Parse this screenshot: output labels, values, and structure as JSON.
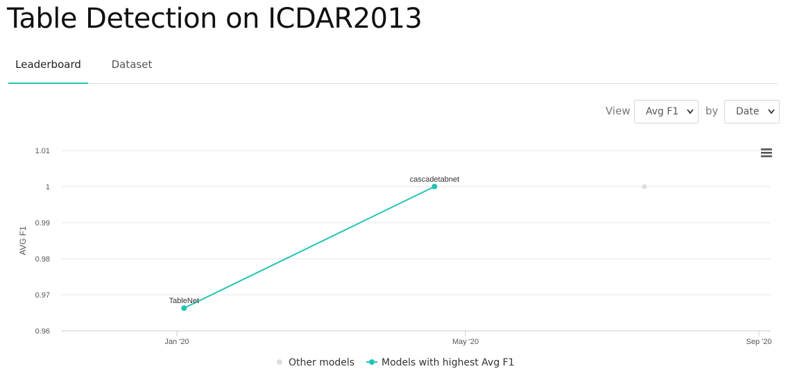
{
  "page": {
    "title": "Table Detection on ICDAR2013"
  },
  "tabs": [
    {
      "label": "Leaderboard",
      "active": true
    },
    {
      "label": "Dataset",
      "active": false
    }
  ],
  "controls": {
    "view_label": "View",
    "metric_selected": "Avg F1",
    "by_label": "by",
    "axis_selected": "Date"
  },
  "colors": {
    "accent": "#21c3b5",
    "other": "#dddddd"
  },
  "chart_data": {
    "type": "line",
    "ylabel": "AVG F1",
    "xlabel": "",
    "ylim": [
      0.96,
      1.01
    ],
    "yticks": [
      0.96,
      0.97,
      0.98,
      0.99,
      1,
      1.01
    ],
    "ytick_labels": [
      "0.96",
      "0.97",
      "0.98",
      "0.99",
      "1",
      "1.01"
    ],
    "xlim": [
      "2019-12-15",
      "2020-09-01"
    ],
    "xticks": [
      "2020-01-01",
      "2020-05-01",
      "2020-09-01"
    ],
    "xtick_labels": [
      "Jan '20",
      "May '20",
      "Sep '20"
    ],
    "grid": true,
    "legend_position": "bottom-center",
    "series": [
      {
        "name": "Other models",
        "color": "#dddddd",
        "line": false,
        "points": [
          {
            "x": "2020-07-15",
            "y": 1
          }
        ]
      },
      {
        "name": "Models with highest Avg F1",
        "color": "#21c3b5",
        "line": true,
        "points": [
          {
            "x": "2020-01-04",
            "y": 0.9663,
            "label": "TableNet"
          },
          {
            "x": "2020-04-18",
            "y": 1,
            "label": "cascadetabnet"
          }
        ]
      }
    ]
  }
}
